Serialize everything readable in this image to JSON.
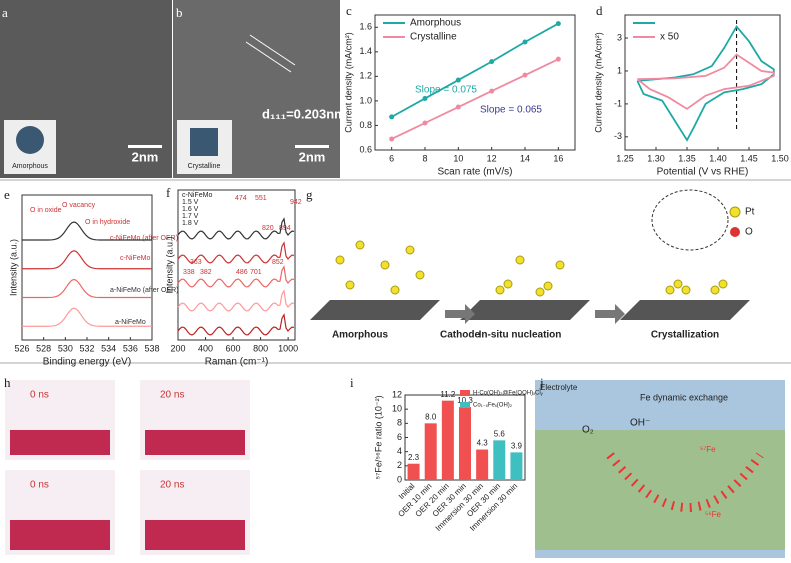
{
  "panel_labels": [
    "a",
    "b",
    "c",
    "d",
    "e",
    "f",
    "g",
    "h",
    "i",
    "j"
  ],
  "panels": {
    "a": {
      "scale_bar": "2nm",
      "inset": "Amorphous"
    },
    "b": {
      "lattice": "d₁₁₁=0.203nm",
      "scale_bar": "2nm",
      "inset": "Crystalline"
    },
    "g": {
      "legend": [
        "Pt",
        "O"
      ],
      "steps": [
        "Amorphous",
        "In-situ nucleation",
        "Crystallization"
      ],
      "arrow": "Cathode"
    },
    "h": {
      "times": [
        "0 ns",
        "20 ns",
        "0 ns",
        "20 ns"
      ]
    },
    "j": {
      "title": "Electrolyte",
      "exchange": "Fe dynamic exchange",
      "labels": [
        "O₂",
        "OH⁻",
        "⁵⁷Fe",
        "⁵⁶Fe"
      ]
    }
  },
  "chart_data": [
    {
      "type": "line",
      "xlabel": "Scan rate (mV/s)",
      "ylabel": "Current density (mA/cm²)",
      "markers": true,
      "x": [
        6,
        8,
        10,
        12,
        14,
        16
      ],
      "xlim": [
        5,
        17
      ],
      "xticks": [
        6,
        8,
        10,
        12,
        14,
        16
      ],
      "ylim": [
        0.6,
        1.7
      ],
      "yticks": [
        0.6,
        0.8,
        {
          "value": 1,
          "label": "1.0"
        },
        1.2,
        1.4,
        1.6
      ],
      "series": [
        {
          "name": "Amorphous",
          "color": "#1fa9a5",
          "values": [
            0.87,
            1.02,
            1.17,
            1.32,
            1.48,
            1.63
          ]
        },
        {
          "name": "Crystalline",
          "color": "#f08aa0",
          "values": [
            0.69,
            0.82,
            0.95,
            1.08,
            1.21,
            1.34
          ]
        }
      ],
      "annotations": [
        "Slope = 0.075",
        "Slope = 0.065"
      ]
    },
    {
      "type": "line",
      "xlabel": "Potential (V vs RHE)",
      "ylabel": "Current density (mA/cm²)",
      "reference_x": 1.43,
      "xlim": [
        1.25,
        1.5
      ],
      "xticks": [
        1.25,
        {
          "value": 1.3,
          "label": "1.30"
        },
        1.35,
        {
          "value": 1.4,
          "label": "1.40"
        },
        1.45,
        {
          "value": 1.5,
          "label": "1.50"
        }
      ],
      "ylim": [
        -3.8,
        4.4
      ],
      "yticks": [
        -3,
        -1,
        1,
        3
      ],
      "series": [
        {
          "color": "#1fa9a5",
          "x": [
            1.27,
            1.3,
            1.33,
            1.36,
            1.39,
            1.41,
            1.43,
            1.45,
            1.47,
            1.49,
            1.49,
            1.47,
            1.44,
            1.41,
            1.38,
            1.36,
            1.35,
            1.33,
            1.31,
            1.28,
            1.27
          ],
          "values": [
            0.4,
            0.5,
            0.6,
            0.8,
            1.3,
            2.4,
            3.7,
            2.8,
            1.6,
            1.1,
            0.8,
            0.2,
            -0.1,
            -0.3,
            -1,
            -2.5,
            -3.2,
            -2,
            -0.8,
            -0.4,
            0.4
          ]
        },
        {
          "name": "x 50",
          "color": "#f08aa0",
          "x": [
            1.27,
            1.33,
            1.38,
            1.41,
            1.43,
            1.45,
            1.47,
            1.49,
            1.49,
            1.45,
            1.41,
            1.38,
            1.35,
            1.32,
            1.29,
            1.27
          ],
          "values": [
            0.5,
            0.55,
            0.7,
            1.2,
            2,
            1.5,
            1,
            0.9,
            0.7,
            0.1,
            -0.1,
            -0.5,
            -1.3,
            -0.6,
            -0.1,
            0.5
          ]
        }
      ]
    },
    {
      "type": "spectrum",
      "xlabel": "Binding energy (eV)",
      "ylabel": "Intensity (a.u.)",
      "xlim": [
        526,
        538
      ],
      "xticks": [
        526,
        528,
        530,
        532,
        534,
        536,
        538
      ],
      "annotations": [
        "O in oxide",
        "O vacancy",
        "O in hydroxide",
        "c-NiFeMo (after OER)",
        "c-NiFeMo",
        "a-NiFeMo (after OER)",
        "a-NiFeMo"
      ]
    },
    {
      "type": "spectrum",
      "xlabel": "Raman (cm⁻¹)",
      "ylabel": "Intensity (a.u.)",
      "xlim": [
        200,
        1050
      ],
      "xticks": [
        200,
        400,
        600,
        800,
        1000
      ],
      "legend": [
        "c-NiFeMo",
        "1.5 V",
        "1.6 V",
        "1.7 V",
        "1.8 V"
      ],
      "annotations": [
        "474",
        "551",
        "820",
        "894",
        "942",
        "363",
        "338",
        "382",
        "486",
        "701",
        "852"
      ]
    },
    {
      "type": "bar",
      "ylabel": "⁵⁷Fe/⁵⁶Fe ratio (10⁻²)",
      "categories": [
        "Initial",
        "OER 10 min",
        "OER 20 min",
        "OER 30 min",
        "Immersion 30 min",
        "OER 30 min",
        "Immersion 30 min"
      ],
      "values": [
        2.3,
        8.0,
        11.2,
        10.3,
        4.3,
        5.6,
        3.9
      ],
      "value_labels": [
        "2.3",
        "8.0",
        "11.2",
        "10.3",
        "4.3",
        "5.6",
        "3.9"
      ],
      "colors": [
        "#f0504f",
        "#f0504f",
        "#f0504f",
        "#f0504f",
        "#f0504f",
        "#40bfc1",
        "#40bfc1"
      ],
      "legend": [
        {
          "name": "H-Co(OH)₂@Fe(OOH)ₓClᵧ",
          "color": "#f0504f"
        },
        {
          "name": "Co₁₋ₓFeₓ(OH)₂",
          "color": "#40bfc1"
        }
      ],
      "ylim": [
        0,
        12
      ],
      "yticks": [
        0,
        2,
        4,
        6,
        8,
        10,
        12
      ]
    }
  ]
}
